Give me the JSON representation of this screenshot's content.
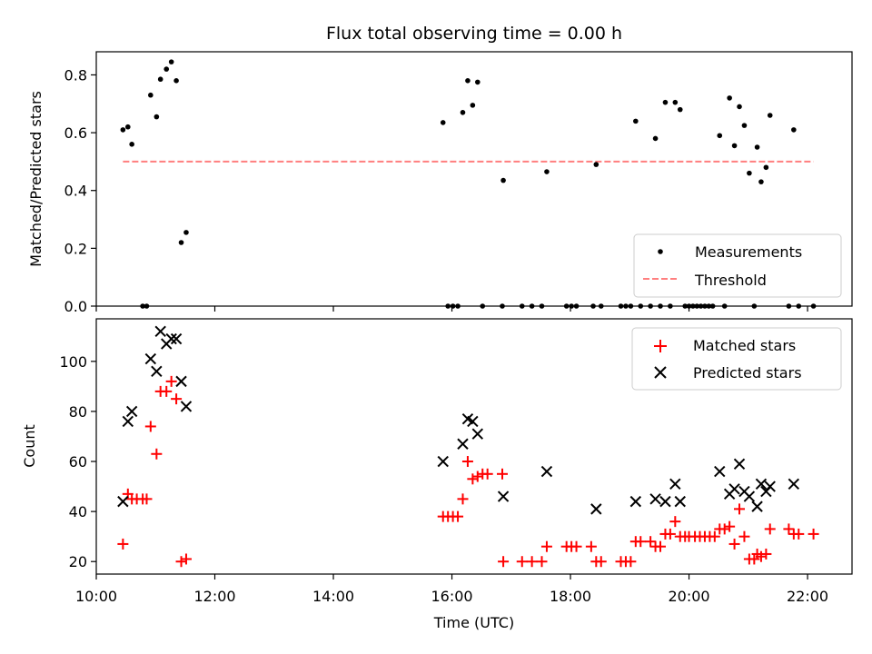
{
  "chart_data": [
    {
      "type": "scatter",
      "title": "Flux total observing time = 0.00 h",
      "xlabel": "",
      "ylabel": "Matched/Predicted stars",
      "xlim": [
        "10:00",
        "22:45"
      ],
      "ylim": [
        0,
        0.88
      ],
      "yticks": [
        0.0,
        0.2,
        0.4,
        0.6,
        0.8
      ],
      "ytick_labels": [
        "0.0",
        "0.2",
        "0.4",
        "0.6",
        "0.8"
      ],
      "legend_position": "lower-right",
      "series": [
        {
          "name": "Measurements",
          "kind": "scatter",
          "color": "#000000",
          "marker": "dot",
          "points": [
            [
              "10:27",
              0.61
            ],
            [
              "10:32",
              0.62
            ],
            [
              "10:36",
              0.56
            ],
            [
              "10:47",
              0.0
            ],
            [
              "10:51",
              0.0
            ],
            [
              "10:55",
              0.73
            ],
            [
              "11:01",
              0.655
            ],
            [
              "11:05",
              0.785
            ],
            [
              "11:11",
              0.82
            ],
            [
              "11:16",
              0.845
            ],
            [
              "11:21",
              0.78
            ],
            [
              "11:26",
              0.22
            ],
            [
              "11:31",
              0.255
            ],
            [
              "15:51",
              0.635
            ],
            [
              "15:56",
              0.0
            ],
            [
              "16:01",
              0.0
            ],
            [
              "16:06",
              0.0
            ],
            [
              "16:11",
              0.67
            ],
            [
              "16:16",
              0.78
            ],
            [
              "16:21",
              0.695
            ],
            [
              "16:26",
              0.775
            ],
            [
              "16:31",
              0.0
            ],
            [
              "16:51",
              0.0
            ],
            [
              "16:52",
              0.435
            ],
            [
              "17:11",
              0.0
            ],
            [
              "17:21",
              0.0
            ],
            [
              "17:31",
              0.0
            ],
            [
              "17:36",
              0.465
            ],
            [
              "17:56",
              0.0
            ],
            [
              "18:01",
              0.0
            ],
            [
              "18:06",
              0.0
            ],
            [
              "18:23",
              0.0
            ],
            [
              "18:26",
              0.49
            ],
            [
              "18:31",
              0.0
            ],
            [
              "18:51",
              0.0
            ],
            [
              "18:56",
              0.0
            ],
            [
              "19:01",
              0.0
            ],
            [
              "19:06",
              0.64
            ],
            [
              "19:11",
              0.0
            ],
            [
              "19:21",
              0.0
            ],
            [
              "19:26",
              0.58
            ],
            [
              "19:31",
              0.0
            ],
            [
              "19:36",
              0.705
            ],
            [
              "19:41",
              0.0
            ],
            [
              "19:46",
              0.705
            ],
            [
              "19:51",
              0.68
            ],
            [
              "19:56",
              0.0
            ],
            [
              "20:00",
              0.0
            ],
            [
              "20:04",
              0.0
            ],
            [
              "20:08",
              0.0
            ],
            [
              "20:12",
              0.0
            ],
            [
              "20:16",
              0.0
            ],
            [
              "20:20",
              0.0
            ],
            [
              "20:24",
              0.0
            ],
            [
              "20:31",
              0.59
            ],
            [
              "20:36",
              0.0
            ],
            [
              "20:41",
              0.72
            ],
            [
              "20:46",
              0.555
            ],
            [
              "20:51",
              0.69
            ],
            [
              "20:56",
              0.625
            ],
            [
              "21:01",
              0.46
            ],
            [
              "21:06",
              0.0
            ],
            [
              "21:09",
              0.55
            ],
            [
              "21:13",
              0.43
            ],
            [
              "21:18",
              0.48
            ],
            [
              "21:22",
              0.66
            ],
            [
              "21:41",
              0.0
            ],
            [
              "21:46",
              0.61
            ],
            [
              "21:51",
              0.0
            ],
            [
              "22:06",
              0.0
            ]
          ]
        },
        {
          "name": "Threshold",
          "kind": "line",
          "style": "dashed",
          "color": "#ff7f7f",
          "points": [
            [
              "10:27",
              0.5
            ],
            [
              "22:06",
              0.5
            ]
          ]
        }
      ]
    },
    {
      "type": "scatter",
      "title": "",
      "xlabel": "Time (UTC)",
      "ylabel": "Count",
      "xlim": [
        "10:00",
        "22:45"
      ],
      "ylim": [
        15,
        117
      ],
      "xticks": [
        "10:00",
        "12:00",
        "14:00",
        "16:00",
        "18:00",
        "20:00",
        "22:00"
      ],
      "yticks": [
        20,
        40,
        60,
        80,
        100
      ],
      "legend_position": "upper-right",
      "series": [
        {
          "name": "Matched stars",
          "kind": "scatter",
          "color": "#ff0000",
          "marker": "plus",
          "points": [
            [
              "10:27",
              27
            ],
            [
              "10:32",
              47
            ],
            [
              "10:36",
              45
            ],
            [
              "10:41",
              45
            ],
            [
              "10:47",
              45
            ],
            [
              "10:51",
              45
            ],
            [
              "10:55",
              74
            ],
            [
              "11:01",
              63
            ],
            [
              "11:05",
              88
            ],
            [
              "11:11",
              88
            ],
            [
              "11:16",
              92
            ],
            [
              "11:21",
              85
            ],
            [
              "11:26",
              20
            ],
            [
              "11:31",
              21
            ],
            [
              "15:51",
              38
            ],
            [
              "15:56",
              38
            ],
            [
              "16:01",
              38
            ],
            [
              "16:06",
              38
            ],
            [
              "16:11",
              45
            ],
            [
              "16:16",
              60
            ],
            [
              "16:21",
              53
            ],
            [
              "16:26",
              54
            ],
            [
              "16:31",
              55
            ],
            [
              "16:36",
              55
            ],
            [
              "16:51",
              55
            ],
            [
              "16:52",
              20
            ],
            [
              "17:11",
              20
            ],
            [
              "17:21",
              20
            ],
            [
              "17:31",
              20
            ],
            [
              "17:36",
              26
            ],
            [
              "17:56",
              26
            ],
            [
              "18:01",
              26
            ],
            [
              "18:06",
              26
            ],
            [
              "18:21",
              26
            ],
            [
              "18:26",
              20
            ],
            [
              "18:31",
              20
            ],
            [
              "18:51",
              20
            ],
            [
              "18:56",
              20
            ],
            [
              "19:01",
              20
            ],
            [
              "19:06",
              28
            ],
            [
              "19:11",
              28
            ],
            [
              "19:21",
              28
            ],
            [
              "19:26",
              26
            ],
            [
              "19:31",
              26
            ],
            [
              "19:36",
              31
            ],
            [
              "19:41",
              31
            ],
            [
              "19:46",
              36
            ],
            [
              "19:51",
              30
            ],
            [
              "19:56",
              30
            ],
            [
              "20:00",
              30
            ],
            [
              "20:06",
              30
            ],
            [
              "20:11",
              30
            ],
            [
              "20:16",
              30
            ],
            [
              "20:21",
              30
            ],
            [
              "20:26",
              30
            ],
            [
              "20:31",
              33
            ],
            [
              "20:36",
              33
            ],
            [
              "20:41",
              34
            ],
            [
              "20:46",
              27
            ],
            [
              "20:51",
              41
            ],
            [
              "20:56",
              30
            ],
            [
              "21:01",
              21
            ],
            [
              "21:06",
              21
            ],
            [
              "21:09",
              23
            ],
            [
              "21:13",
              22
            ],
            [
              "21:18",
              23
            ],
            [
              "21:22",
              33
            ],
            [
              "21:41",
              33
            ],
            [
              "21:46",
              31
            ],
            [
              "21:51",
              31
            ],
            [
              "22:06",
              31
            ]
          ]
        },
        {
          "name": "Predicted stars",
          "kind": "scatter",
          "color": "#000000",
          "marker": "x",
          "points": [
            [
              "10:27",
              44
            ],
            [
              "10:32",
              76
            ],
            [
              "10:36",
              80
            ],
            [
              "10:55",
              101
            ],
            [
              "11:01",
              96
            ],
            [
              "11:05",
              112
            ],
            [
              "11:11",
              107
            ],
            [
              "11:16",
              109
            ],
            [
              "11:21",
              109
            ],
            [
              "11:26",
              92
            ],
            [
              "11:31",
              82
            ],
            [
              "15:51",
              60
            ],
            [
              "16:11",
              67
            ],
            [
              "16:16",
              77
            ],
            [
              "16:21",
              76
            ],
            [
              "16:26",
              71
            ],
            [
              "16:52",
              46
            ],
            [
              "17:36",
              56
            ],
            [
              "18:26",
              41
            ],
            [
              "19:06",
              44
            ],
            [
              "19:26",
              45
            ],
            [
              "19:36",
              44
            ],
            [
              "19:46",
              51
            ],
            [
              "19:51",
              44
            ],
            [
              "20:31",
              56
            ],
            [
              "20:41",
              47
            ],
            [
              "20:46",
              49
            ],
            [
              "20:51",
              59
            ],
            [
              "20:56",
              48
            ],
            [
              "21:01",
              46
            ],
            [
              "21:09",
              42
            ],
            [
              "21:13",
              51
            ],
            [
              "21:18",
              48
            ],
            [
              "21:22",
              50
            ],
            [
              "21:46",
              51
            ]
          ]
        }
      ]
    }
  ]
}
